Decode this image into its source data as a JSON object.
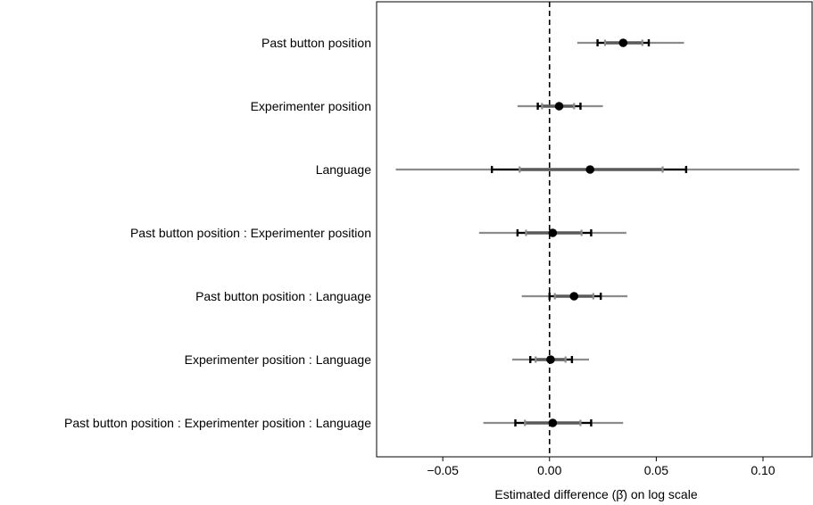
{
  "chart_data": {
    "type": "scatter",
    "xlabel": "Estimated difference (β̂) on log scale",
    "xlim": [
      -0.081,
      0.123
    ],
    "xticks": [
      {
        "value": -0.05,
        "label": "−0.05"
      },
      {
        "value": 0.0,
        "label": "0.00"
      },
      {
        "value": 0.05,
        "label": "0.05"
      },
      {
        "value": 0.1,
        "label": "0.10"
      }
    ],
    "reference_line": 0,
    "grid": false,
    "terms": [
      {
        "label": "Past button position",
        "estimate": 0.0345,
        "outer": [
          0.013,
          0.063
        ],
        "inner": [
          0.026,
          0.0435
        ],
        "whisker": [
          0.0225,
          0.0465
        ]
      },
      {
        "label": "Experimenter position",
        "estimate": 0.0045,
        "outer": [
          -0.015,
          0.025
        ],
        "inner": [
          -0.0035,
          0.0115
        ],
        "whisker": [
          -0.0055,
          0.0145
        ]
      },
      {
        "label": "Language",
        "estimate": 0.019,
        "outer": [
          -0.072,
          0.117
        ],
        "inner": [
          -0.014,
          0.053
        ],
        "whisker": [
          -0.027,
          0.064
        ]
      },
      {
        "label": "Past button position : Experimenter position",
        "estimate": 0.0015,
        "outer": [
          -0.033,
          0.036
        ],
        "inner": [
          -0.011,
          0.015
        ],
        "whisker": [
          -0.015,
          0.0195
        ]
      },
      {
        "label": "Past button position : Language",
        "estimate": 0.0115,
        "outer": [
          -0.013,
          0.0365
        ],
        "inner": [
          0.0025,
          0.0205
        ],
        "whisker": [
          0.0,
          0.024
        ]
      },
      {
        "label": "Experimenter position : Language",
        "estimate": 0.0005,
        "outer": [
          -0.0175,
          0.0185
        ],
        "inner": [
          -0.0065,
          0.0075
        ],
        "whisker": [
          -0.009,
          0.0105
        ]
      },
      {
        "label": "Past button position : Experimenter position : Language",
        "estimate": 0.0015,
        "outer": [
          -0.031,
          0.0345
        ],
        "inner": [
          -0.0115,
          0.0145
        ],
        "whisker": [
          -0.016,
          0.0195
        ]
      }
    ],
    "colors": {
      "outer": "#8c8c8c",
      "inner": "#5a5a5a",
      "whisker_outer": "#8c8c8c",
      "whisker_inner": "#000000",
      "point": "#000000",
      "reference": "#000000"
    }
  }
}
